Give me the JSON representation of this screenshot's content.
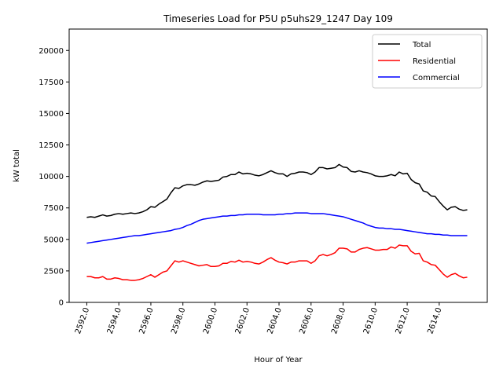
{
  "chart_data": {
    "type": "line",
    "title": "Timeseries Load for P5U p5uhs29_1247  Day 109",
    "xlabel": "Hour of Year",
    "ylabel": "kW total",
    "xlim": [
      2590.9,
      2617.0
    ],
    "ylim": [
      0,
      21700
    ],
    "x_start": 2592.0,
    "x_step": 0.25,
    "xticks": [
      2592,
      2594,
      2596,
      2598,
      2600,
      2602,
      2604,
      2606,
      2608,
      2610,
      2612,
      2614
    ],
    "xtick_labels": [
      "2592.0",
      "2594.0",
      "2596.0",
      "2598.0",
      "2600.0",
      "2602.0",
      "2604.0",
      "2606.0",
      "2608.0",
      "2610.0",
      "2612.0",
      "2614.0"
    ],
    "yticks": [
      0,
      2500,
      5000,
      7500,
      10000,
      12500,
      15000,
      17500,
      20000
    ],
    "ytick_labels": [
      "0",
      "2500",
      "5000",
      "7500",
      "10000",
      "12500",
      "15000",
      "17500",
      "20000"
    ],
    "legend_position": "top-right",
    "series": [
      {
        "name": "Total",
        "color": "#000000",
        "values": [
          6750,
          6800,
          6750,
          6850,
          6950,
          6850,
          6900,
          7000,
          7050,
          7000,
          7050,
          7100,
          7050,
          7100,
          7200,
          7350,
          7600,
          7550,
          7800,
          8000,
          8200,
          8700,
          9100,
          9050,
          9250,
          9350,
          9350,
          9300,
          9400,
          9550,
          9650,
          9600,
          9650,
          9700,
          9950,
          10000,
          10150,
          10150,
          10350,
          10200,
          10250,
          10200,
          10100,
          10050,
          10150,
          10300,
          10450,
          10300,
          10200,
          10200,
          10000,
          10200,
          10250,
          10350,
          10350,
          10300,
          10150,
          10350,
          10700,
          10700,
          10600,
          10650,
          10700,
          10950,
          10750,
          10700,
          10400,
          10350,
          10450,
          10350,
          10300,
          10200,
          10050,
          10000,
          10000,
          10050,
          10150,
          10050,
          10350,
          10200,
          10250,
          9750,
          9500,
          9400,
          8850,
          8750,
          8450,
          8400,
          8000,
          7650,
          7350,
          7550,
          7600,
          7400,
          7300,
          7350
        ]
      },
      {
        "name": "Residential",
        "color": "#ff0000",
        "values": [
          2050,
          2050,
          1950,
          1950,
          2050,
          1850,
          1850,
          1950,
          1900,
          1800,
          1800,
          1750,
          1750,
          1800,
          1900,
          2050,
          2200,
          2000,
          2200,
          2400,
          2500,
          2900,
          3300,
          3200,
          3300,
          3200,
          3100,
          3000,
          2900,
          2950,
          3000,
          2850,
          2850,
          2900,
          3100,
          3100,
          3250,
          3200,
          3350,
          3200,
          3250,
          3200,
          3100,
          3050,
          3200,
          3400,
          3550,
          3350,
          3200,
          3150,
          3050,
          3200,
          3200,
          3300,
          3300,
          3300,
          3100,
          3300,
          3700,
          3800,
          3700,
          3800,
          3950,
          4300,
          4300,
          4250,
          4000,
          4000,
          4200,
          4300,
          4350,
          4250,
          4150,
          4150,
          4200,
          4200,
          4400,
          4300,
          4550,
          4500,
          4500,
          4050,
          3850,
          3900,
          3300,
          3200,
          3000,
          2950,
          2600,
          2250,
          2000,
          2200,
          2300,
          2100,
          1950,
          2000
        ]
      },
      {
        "name": "Commercial",
        "color": "#0000ff",
        "values": [
          4700,
          4750,
          4800,
          4850,
          4900,
          4950,
          5000,
          5050,
          5100,
          5150,
          5200,
          5250,
          5300,
          5300,
          5350,
          5400,
          5450,
          5500,
          5550,
          5600,
          5650,
          5700,
          5800,
          5850,
          5950,
          6100,
          6200,
          6350,
          6500,
          6600,
          6650,
          6700,
          6750,
          6800,
          6850,
          6850,
          6900,
          6900,
          6950,
          6950,
          7000,
          7000,
          7000,
          7000,
          6950,
          6950,
          6950,
          6950,
          7000,
          7000,
          7050,
          7050,
          7100,
          7100,
          7100,
          7100,
          7050,
          7050,
          7050,
          7050,
          7000,
          6950,
          6900,
          6850,
          6800,
          6700,
          6600,
          6500,
          6400,
          6300,
          6150,
          6050,
          5950,
          5900,
          5900,
          5850,
          5850,
          5800,
          5800,
          5750,
          5700,
          5650,
          5600,
          5550,
          5500,
          5450,
          5450,
          5400,
          5400,
          5350,
          5350,
          5300,
          5300,
          5300,
          5300,
          5300
        ]
      }
    ]
  }
}
